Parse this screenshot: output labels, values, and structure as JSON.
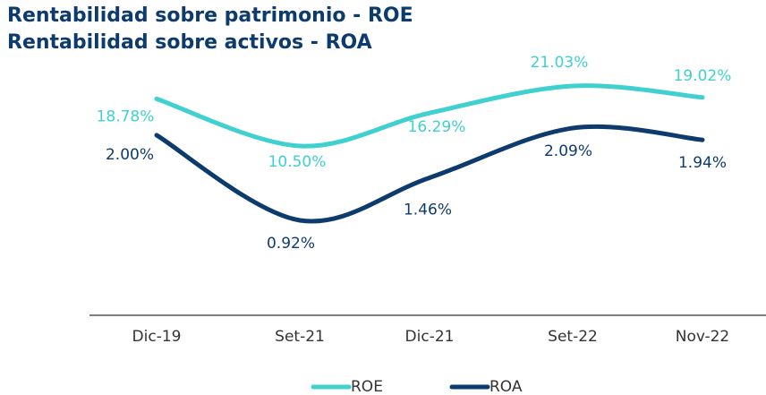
{
  "chart_data": {
    "type": "line",
    "title": [
      "Rentabilidad sobre patrimonio - ROE",
      "Rentabilidad sobre activos - ROA"
    ],
    "categories": [
      "Dic-19",
      "Set-21",
      "Dic-21",
      "Set-22",
      "Nov-22"
    ],
    "series": [
      {
        "name": "ROE",
        "color": "#3fd0cf",
        "values": [
          18.78,
          10.5,
          16.29,
          21.03,
          19.02
        ],
        "value_labels": [
          "18.78%",
          "10.50%",
          "16.29%",
          "21.03%",
          "19.02%"
        ]
      },
      {
        "name": "ROA",
        "color": "#0d3b6e",
        "values": [
          2.0,
          0.92,
          1.46,
          2.09,
          1.94
        ],
        "value_labels": [
          "2.00%",
          "0.92%",
          "1.46%",
          "2.09%",
          "1.94%"
        ]
      }
    ],
    "legend": "bottom"
  }
}
